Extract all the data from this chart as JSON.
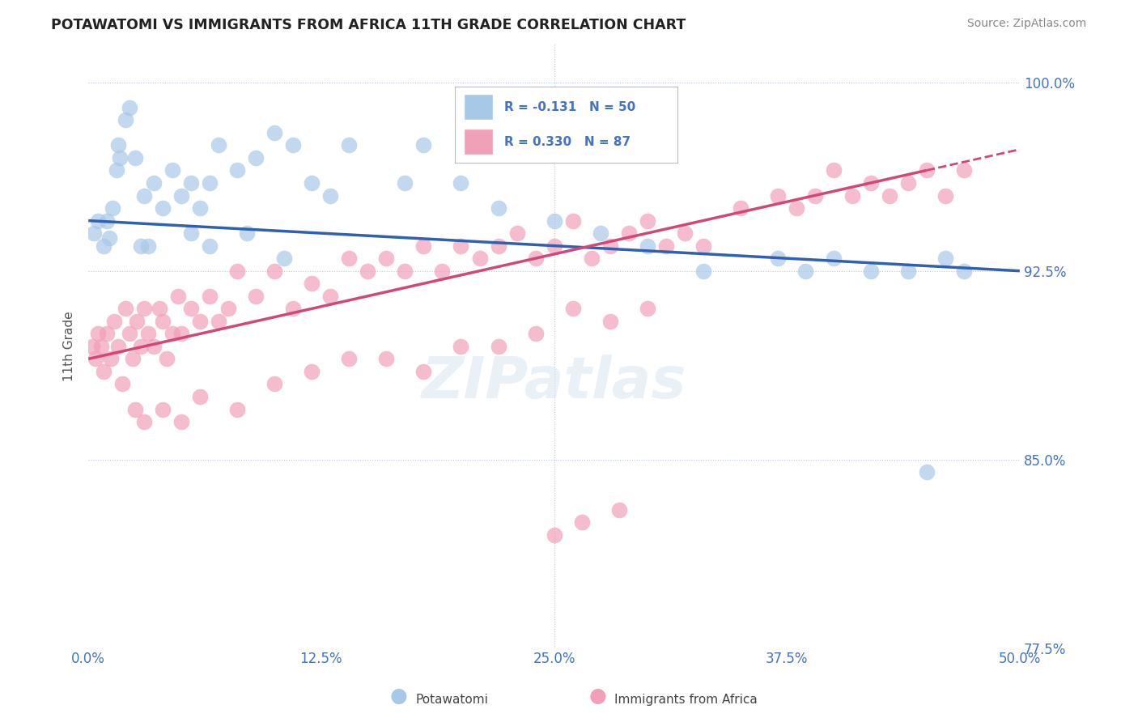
{
  "title": "POTAWATOMI VS IMMIGRANTS FROM AFRICA 11TH GRADE CORRELATION CHART",
  "source": "Source: ZipAtlas.com",
  "ylabel": "11th Grade",
  "legend_label1": "R = -0.131   N = 50",
  "legend_label2": "R = 0.330   N = 87",
  "color_blue": "#a8c8e8",
  "color_pink": "#f0a0b8",
  "color_line_blue": "#3060b0",
  "color_line_pink": "#d04878",
  "xlim": [
    0.0,
    50.0
  ],
  "ylim": [
    77.5,
    101.5
  ],
  "yticks": [
    77.5,
    85.0,
    92.5,
    100.0
  ],
  "xticks": [
    0.0,
    12.5,
    25.0,
    37.5,
    50.0
  ],
  "blue_line_x0": 0.0,
  "blue_line_y0": 94.5,
  "blue_line_x1": 50.0,
  "blue_line_y1": 92.5,
  "pink_line_x0": 0.0,
  "pink_line_y0": 89.0,
  "pink_line_x1": 45.0,
  "pink_line_y1": 96.5,
  "pink_line_dash_x0": 45.0,
  "pink_line_dash_x1": 50.0,
  "watermark": "ZIPatlas",
  "blue_x": [
    0.3,
    0.5,
    0.8,
    1.0,
    1.1,
    1.3,
    1.5,
    1.6,
    1.7,
    2.0,
    2.2,
    2.5,
    3.0,
    3.5,
    4.0,
    4.5,
    5.0,
    5.5,
    6.0,
    6.5,
    7.0,
    8.0,
    9.0,
    10.0,
    11.0,
    12.0,
    13.0,
    14.0,
    17.0,
    18.0,
    20.0,
    22.0,
    25.0,
    27.5,
    30.0,
    33.0,
    37.0,
    38.5,
    40.0,
    42.0,
    44.0,
    45.0,
    46.0,
    47.0,
    5.5,
    6.5,
    8.5,
    3.2,
    10.5,
    2.8
  ],
  "blue_y": [
    94.0,
    94.5,
    93.5,
    94.5,
    93.8,
    95.0,
    96.5,
    97.5,
    97.0,
    98.5,
    99.0,
    97.0,
    95.5,
    96.0,
    95.0,
    96.5,
    95.5,
    96.0,
    95.0,
    96.0,
    97.5,
    96.5,
    97.0,
    98.0,
    97.5,
    96.0,
    95.5,
    97.5,
    96.0,
    97.5,
    96.0,
    95.0,
    94.5,
    94.0,
    93.5,
    92.5,
    93.0,
    92.5,
    93.0,
    92.5,
    92.5,
    84.5,
    93.0,
    92.5,
    94.0,
    93.5,
    94.0,
    93.5,
    93.0,
    93.5
  ],
  "pink_x": [
    0.2,
    0.4,
    0.5,
    0.7,
    0.8,
    1.0,
    1.2,
    1.4,
    1.6,
    1.8,
    2.0,
    2.2,
    2.4,
    2.6,
    2.8,
    3.0,
    3.2,
    3.5,
    3.8,
    4.0,
    4.2,
    4.5,
    4.8,
    5.0,
    5.5,
    6.0,
    6.5,
    7.0,
    7.5,
    8.0,
    9.0,
    10.0,
    11.0,
    12.0,
    13.0,
    14.0,
    15.0,
    16.0,
    17.0,
    18.0,
    19.0,
    20.0,
    21.0,
    22.0,
    23.0,
    24.0,
    25.0,
    26.0,
    27.0,
    28.0,
    29.0,
    30.0,
    31.0,
    32.0,
    33.0,
    35.0,
    37.0,
    38.0,
    39.0,
    40.0,
    41.0,
    42.0,
    43.0,
    44.0,
    45.0,
    46.0,
    47.0,
    2.5,
    3.0,
    4.0,
    5.0,
    6.0,
    8.0,
    10.0,
    12.0,
    14.0,
    16.0,
    18.0,
    20.0,
    22.0,
    24.0,
    26.0,
    28.0,
    30.0,
    25.0,
    26.5,
    28.5
  ],
  "pink_y": [
    89.5,
    89.0,
    90.0,
    89.5,
    88.5,
    90.0,
    89.0,
    90.5,
    89.5,
    88.0,
    91.0,
    90.0,
    89.0,
    90.5,
    89.5,
    91.0,
    90.0,
    89.5,
    91.0,
    90.5,
    89.0,
    90.0,
    91.5,
    90.0,
    91.0,
    90.5,
    91.5,
    90.5,
    91.0,
    92.5,
    91.5,
    92.5,
    91.0,
    92.0,
    91.5,
    93.0,
    92.5,
    93.0,
    92.5,
    93.5,
    92.5,
    93.5,
    93.0,
    93.5,
    94.0,
    93.0,
    93.5,
    94.5,
    93.0,
    93.5,
    94.0,
    94.5,
    93.5,
    94.0,
    93.5,
    95.0,
    95.5,
    95.0,
    95.5,
    96.5,
    95.5,
    96.0,
    95.5,
    96.0,
    96.5,
    95.5,
    96.5,
    87.0,
    86.5,
    87.0,
    86.5,
    87.5,
    87.0,
    88.0,
    88.5,
    89.0,
    89.0,
    88.5,
    89.5,
    89.5,
    90.0,
    91.0,
    90.5,
    91.0,
    82.0,
    82.5,
    83.0
  ]
}
